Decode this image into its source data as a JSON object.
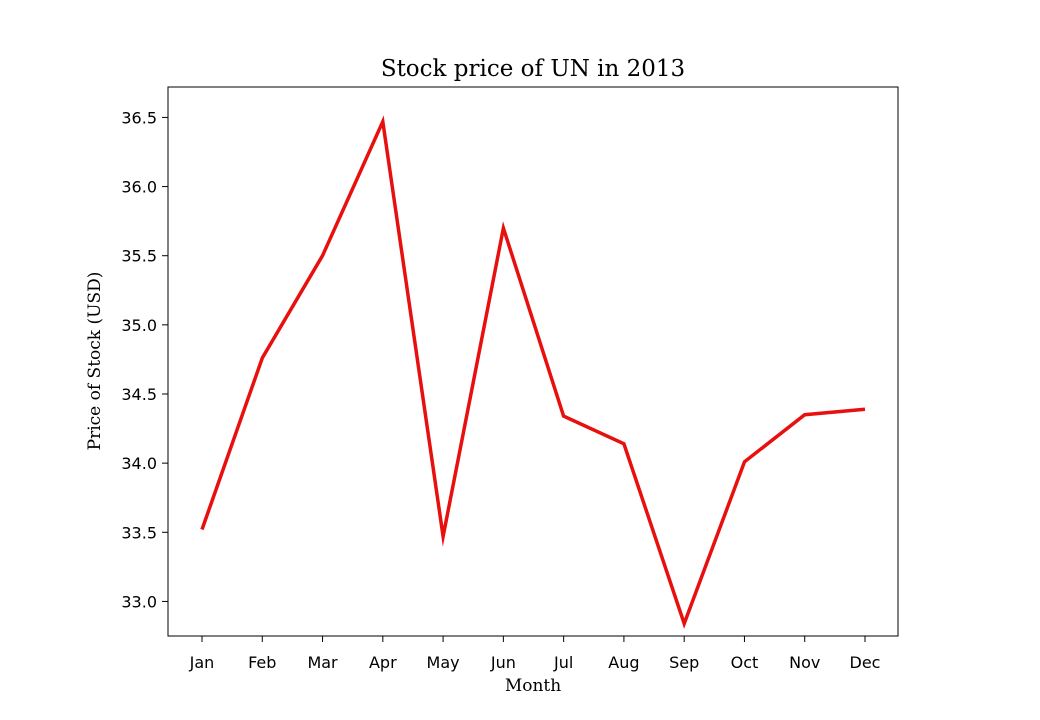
{
  "chart_data": {
    "type": "line",
    "title": "Stock price of UN in 2013",
    "xlabel": "Month",
    "ylabel": "Price of Stock (USD)",
    "categories": [
      "Jan",
      "Feb",
      "Mar",
      "Apr",
      "May",
      "Jun",
      "Jul",
      "Aug",
      "Sep",
      "Oct",
      "Nov",
      "Dec"
    ],
    "series": [
      {
        "values": [
          33.52,
          34.76,
          35.5,
          36.47,
          33.47,
          35.7,
          34.34,
          34.14,
          32.84,
          34.01,
          34.35,
          34.39
        ],
        "color": "#e8100e"
      }
    ],
    "ylim": [
      32.75,
      36.72
    ],
    "yticks": [
      "33.0",
      "33.5",
      "34.0",
      "34.5",
      "35.0",
      "35.5",
      "36.0",
      "36.5"
    ],
    "grid": false,
    "legend": "none"
  }
}
